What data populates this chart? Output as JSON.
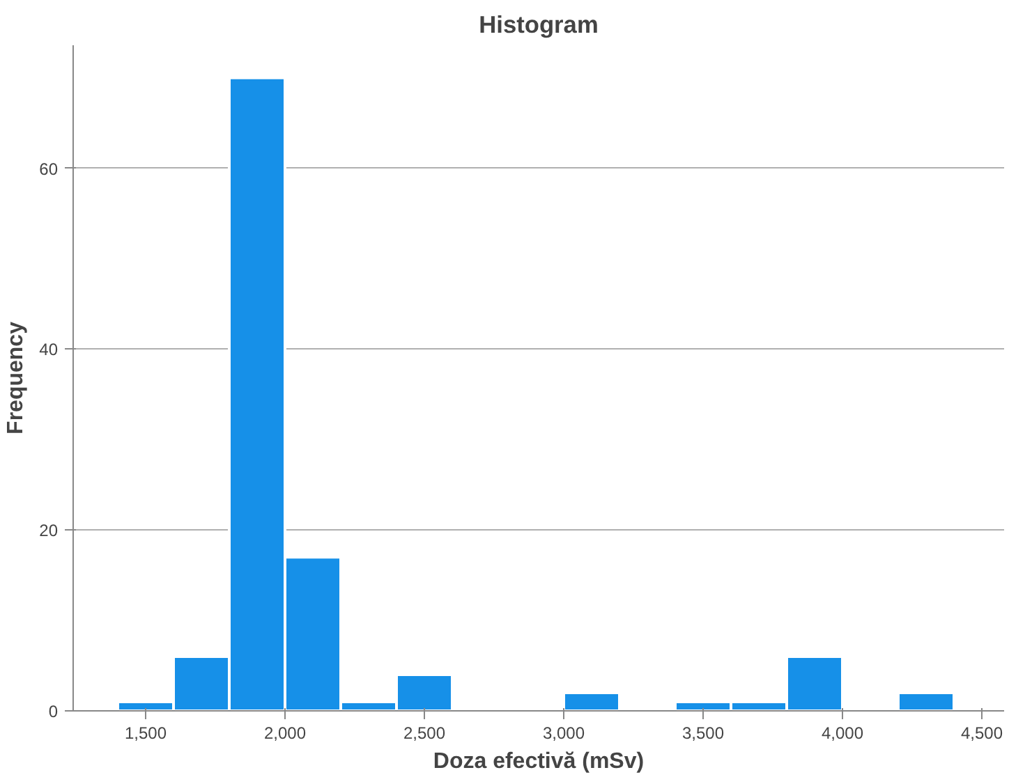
{
  "chart_data": {
    "type": "histogram",
    "title": "Histogram",
    "xlabel": "Doza efectivă (mSv)",
    "ylabel": "Frequency",
    "bins": [
      1400,
      1600,
      1800,
      2000,
      2200,
      2400,
      2600,
      2800,
      3000,
      3200,
      3400,
      3600,
      3800,
      4000,
      4200,
      4400
    ],
    "values": [
      1,
      6,
      70,
      17,
      1,
      4,
      0,
      0,
      2,
      0,
      1,
      1,
      6,
      0,
      2
    ],
    "color": "#1690e8",
    "xlim": [
      1240,
      4580
    ],
    "xticks": [
      {
        "value": 1500,
        "label": "1,500"
      },
      {
        "value": 2000,
        "label": "2,000"
      },
      {
        "value": 2500,
        "label": "2,500"
      },
      {
        "value": 3000,
        "label": "3,000"
      },
      {
        "value": 3500,
        "label": "3,500"
      },
      {
        "value": 4000,
        "label": "4,000"
      },
      {
        "value": 4500,
        "label": "4,500"
      }
    ],
    "ylim": [
      0,
      73.6
    ],
    "yticks": [
      0,
      20,
      40,
      60
    ],
    "grid": "y"
  }
}
